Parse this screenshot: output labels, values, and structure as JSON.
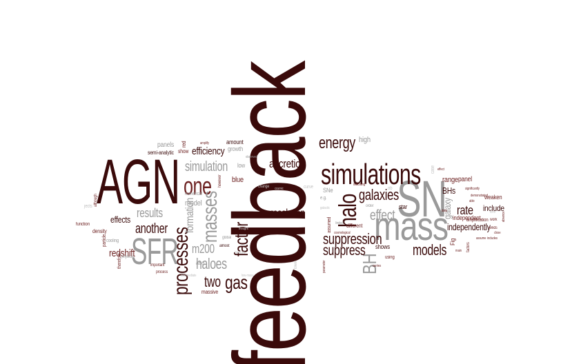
{
  "words": {
    "feedback": "feedback",
    "agn": "AGN",
    "mass": "mass",
    "sn": "SN",
    "sfr": "SFR",
    "simulations": "simulations",
    "processes": "processes",
    "halo": "halo",
    "one": "one",
    "masses": "masses",
    "factor": "factor",
    "gas": "gas",
    "bh": "BH",
    "energy": "energy",
    "suppression": "suppression",
    "suppress": "suppress",
    "galaxies": "galaxies",
    "effect": "effect",
    "models": "models",
    "resolution": "resolution",
    "accretion": "accretion",
    "simulation": "simulation",
    "another": "another",
    "halos": "halos",
    "haloes": "haloes",
    "two": "two",
    "m200": "m200",
    "results": "results",
    "formation": "formation",
    "efficiency": "efficiency",
    "redshift": "redshift",
    "effects": "effects",
    "rate": "rate",
    "independently": "independently",
    "galaxy": "galaxy",
    "bhs": "BHs",
    "range": "range",
    "panel": "panel",
    "include": "include",
    "independent": "independent",
    "weaken": "weaken",
    "amplification": "amplification",
    "high": "high",
    "amount": "amount",
    "growth": "growth",
    "low": "low",
    "blue": "blue",
    "panels": "panels",
    "semi_analytic": "semi-analytic",
    "show": "show",
    "red": "red",
    "shows": "shows",
    "star": "star",
    "sne": "SNe",
    "eg": "e.g.",
    "different": "different",
    "order": "order",
    "curve": "curve",
    "change": "change",
    "almost": "almost",
    "massive": "massive",
    "density": "density",
    "function": "function",
    "particle": "particle",
    "cooling": "cooling",
    "therefore": "therefore",
    "physical": "physical",
    "important": "important",
    "process": "process",
    "also": "also",
    "model": "model",
    "numerical": "numerical",
    "global": "global",
    "bottom": "bottom",
    "low_mass": "low-mass",
    "intermediate": "intermediate",
    "using": "using",
    "carries": "carries",
    "ob": "ob",
    "case": "case",
    "fig": "Fig",
    "significantly": "significantly",
    "demonstrated": "demonstrated",
    "factors": "factors",
    "work": "work",
    "winds": "winds",
    "close": "close",
    "includes": "includes",
    "absence": "absence",
    "assume": "assume",
    "however": "however",
    "thought": "thought",
    "observed": "observed",
    "cosmic": "cosmic",
    "limited": "limited",
    "galactic": "galactic",
    "assumed": "assumed",
    "indicating": "indicating",
    "lower": "lower",
    "parameter": "parameter",
    "jects": "jects",
    "although": "although",
    "amplify": "amplify",
    "cosmological": "cosmological",
    "main": "main",
    "data": "data",
    "form": "form",
    "effect2": "effect",
    "able": "able",
    "mbh": "M_BH"
  },
  "colors": {
    "dark": "#3a0a0a",
    "medium": "#6b1f1f",
    "gray": "#9a9a9a",
    "light_gray": "#c2c2c2",
    "background": "#ffffff"
  }
}
